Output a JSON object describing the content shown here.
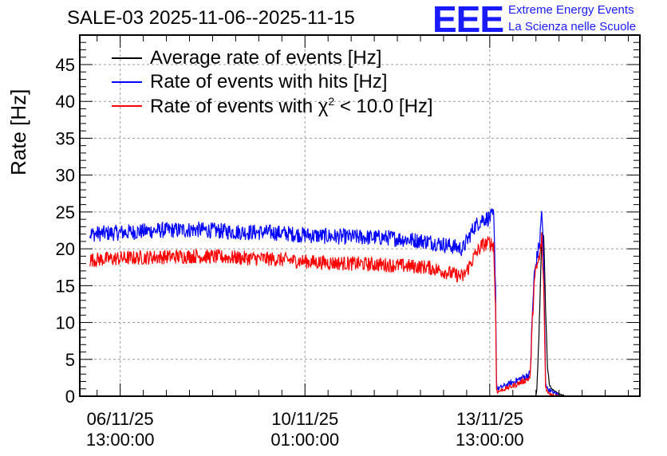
{
  "chart_data": {
    "type": "line",
    "title": "SALE-03 2025-11-06--2025-11-15",
    "logo": {
      "mark": "EEE",
      "line1": "Extreme Energy Events",
      "line2": "La Scienza nelle Scuole"
    },
    "ylabel": "Rate [Hz]",
    "xlabel": "",
    "ylim": [
      0,
      49
    ],
    "xlim": [
      -21,
      270
    ],
    "x_unit": "hours since 06/11/25 13:00:00",
    "grid": true,
    "legend_position": "top-left",
    "y_ticks": [
      "0",
      "5",
      "10",
      "15",
      "20",
      "25",
      "30",
      "35",
      "40",
      "45"
    ],
    "x_ticks": [
      {
        "x": 0,
        "line1": "06/11/25",
        "line2": "13:00:00"
      },
      {
        "x": 96,
        "line1": "10/11/25",
        "line2": "01:00:00"
      },
      {
        "x": 192,
        "line1": "13/11/25",
        "line2": "13:00:00"
      }
    ],
    "series": [
      {
        "name": "Average rate of events [Hz]",
        "legend_label": "Average rate of events [Hz]",
        "color": "#000000",
        "points": [
          [
            216,
            0
          ],
          [
            216.5,
            1
          ],
          [
            217,
            4
          ],
          [
            218,
            12
          ],
          [
            219,
            22
          ],
          [
            220,
            22
          ],
          [
            221,
            12
          ],
          [
            222,
            4
          ],
          [
            223,
            1.5
          ],
          [
            225,
            0.8
          ],
          [
            228,
            0.3
          ],
          [
            232,
            0
          ]
        ]
      },
      {
        "name": "Rate of events with hits [Hz]",
        "legend_label": "Rate of events with hits [Hz]",
        "color": "#0000ff",
        "points": [
          [
            -16,
            22
          ],
          [
            0,
            22.2
          ],
          [
            20,
            22.5
          ],
          [
            40,
            22.6
          ],
          [
            60,
            22.3
          ],
          [
            80,
            22.2
          ],
          [
            100,
            21.8
          ],
          [
            120,
            21.6
          ],
          [
            140,
            21.5
          ],
          [
            160,
            21
          ],
          [
            170,
            20.5
          ],
          [
            178,
            20
          ],
          [
            180,
            21
          ],
          [
            184,
            23
          ],
          [
            188,
            24
          ],
          [
            192,
            24.2
          ],
          [
            194,
            24.5
          ],
          [
            195,
            15
          ],
          [
            195.5,
            2
          ],
          [
            196,
            1
          ],
          [
            205,
            2
          ],
          [
            213,
            3
          ],
          [
            214,
            10
          ],
          [
            215,
            16
          ],
          [
            216,
            18
          ],
          [
            218,
            21
          ],
          [
            219,
            25.5
          ],
          [
            220,
            18
          ],
          [
            221,
            2
          ],
          [
            222,
            1
          ],
          [
            225,
            0.5
          ],
          [
            228,
            0.2
          ]
        ]
      },
      {
        "name": "Rate of events with chi2 < 10.0 [Hz]",
        "legend_label": "Rate of events with χ",
        "legend_sup": "2",
        "legend_suffix": " < 10.0 [Hz]",
        "color": "#ff0000",
        "points": [
          [
            -16,
            18.5
          ],
          [
            0,
            18.7
          ],
          [
            20,
            18.9
          ],
          [
            40,
            19
          ],
          [
            60,
            18.8
          ],
          [
            80,
            18.6
          ],
          [
            100,
            18.2
          ],
          [
            120,
            18
          ],
          [
            140,
            17.8
          ],
          [
            160,
            17.5
          ],
          [
            170,
            16.8
          ],
          [
            178,
            16.2
          ],
          [
            180,
            17
          ],
          [
            184,
            19
          ],
          [
            188,
            20.5
          ],
          [
            192,
            20.8
          ],
          [
            194,
            20.5
          ],
          [
            195,
            12
          ],
          [
            195.5,
            1
          ],
          [
            196,
            0.6
          ],
          [
            205,
            1.5
          ],
          [
            213,
            2.5
          ],
          [
            214,
            9
          ],
          [
            215,
            15
          ],
          [
            216,
            17
          ],
          [
            218,
            19
          ],
          [
            219,
            21.5
          ],
          [
            220,
            15
          ],
          [
            221,
            1.5
          ],
          [
            222,
            0.5
          ],
          [
            225,
            0.2
          ],
          [
            228,
            0
          ]
        ]
      }
    ]
  }
}
